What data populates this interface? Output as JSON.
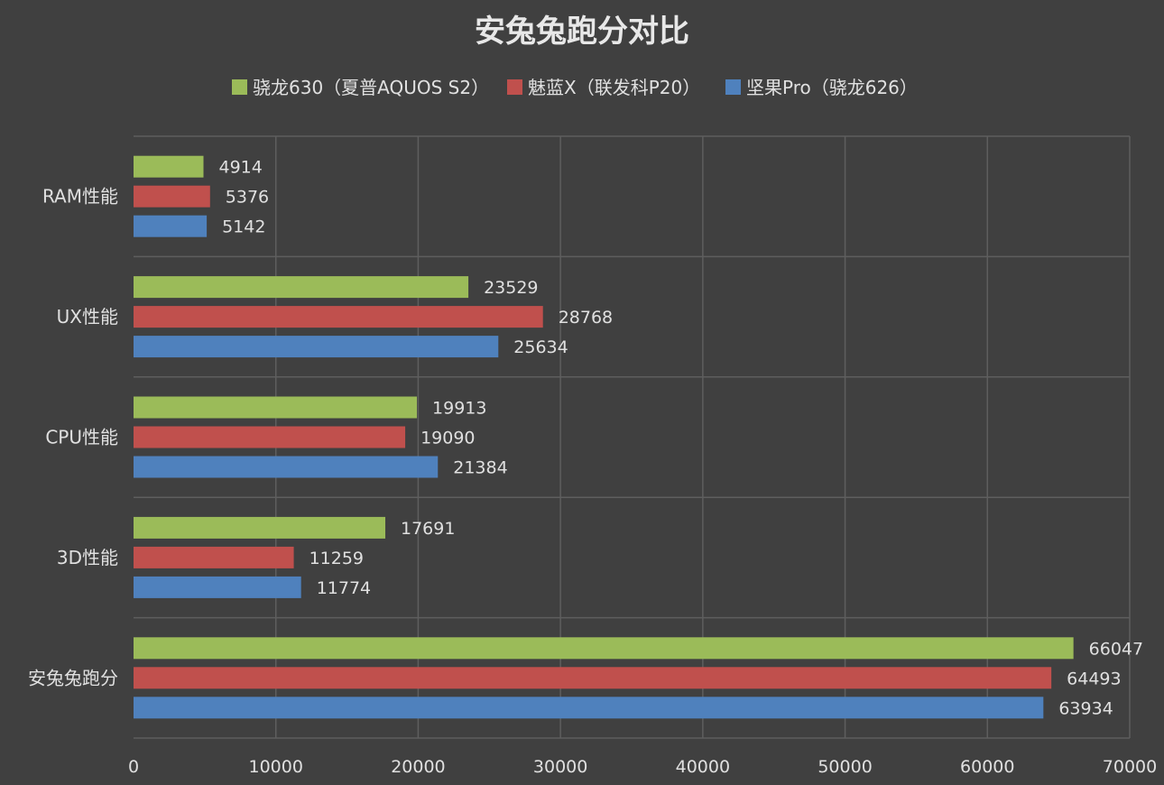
{
  "chart_data": {
    "type": "bar",
    "orientation": "horizontal",
    "title": "安兔兔跑分对比",
    "categories": [
      "RAM性能",
      "UX性能",
      "CPU性能",
      "3D性能",
      "安兔兔跑分"
    ],
    "series": [
      {
        "name": "骁龙630（夏普AQUOS S2）",
        "color": "#9bbb59",
        "values": [
          4914,
          23529,
          19913,
          17691,
          66047
        ]
      },
      {
        "name": "魅蓝X（联发科P20）",
        "color": "#c0504d",
        "values": [
          5376,
          28768,
          19090,
          11259,
          64493
        ]
      },
      {
        "name": "坚果Pro（骁龙626）",
        "color": "#4f81bd",
        "values": [
          5142,
          25634,
          21384,
          11774,
          63934
        ]
      }
    ],
    "xlim": [
      0,
      70000
    ],
    "xticks": [
      "0",
      "10000",
      "20000",
      "30000",
      "40000",
      "50000",
      "60000",
      "70000"
    ],
    "xlabel": "",
    "ylabel": "",
    "grid": true,
    "legend_position": "top"
  }
}
